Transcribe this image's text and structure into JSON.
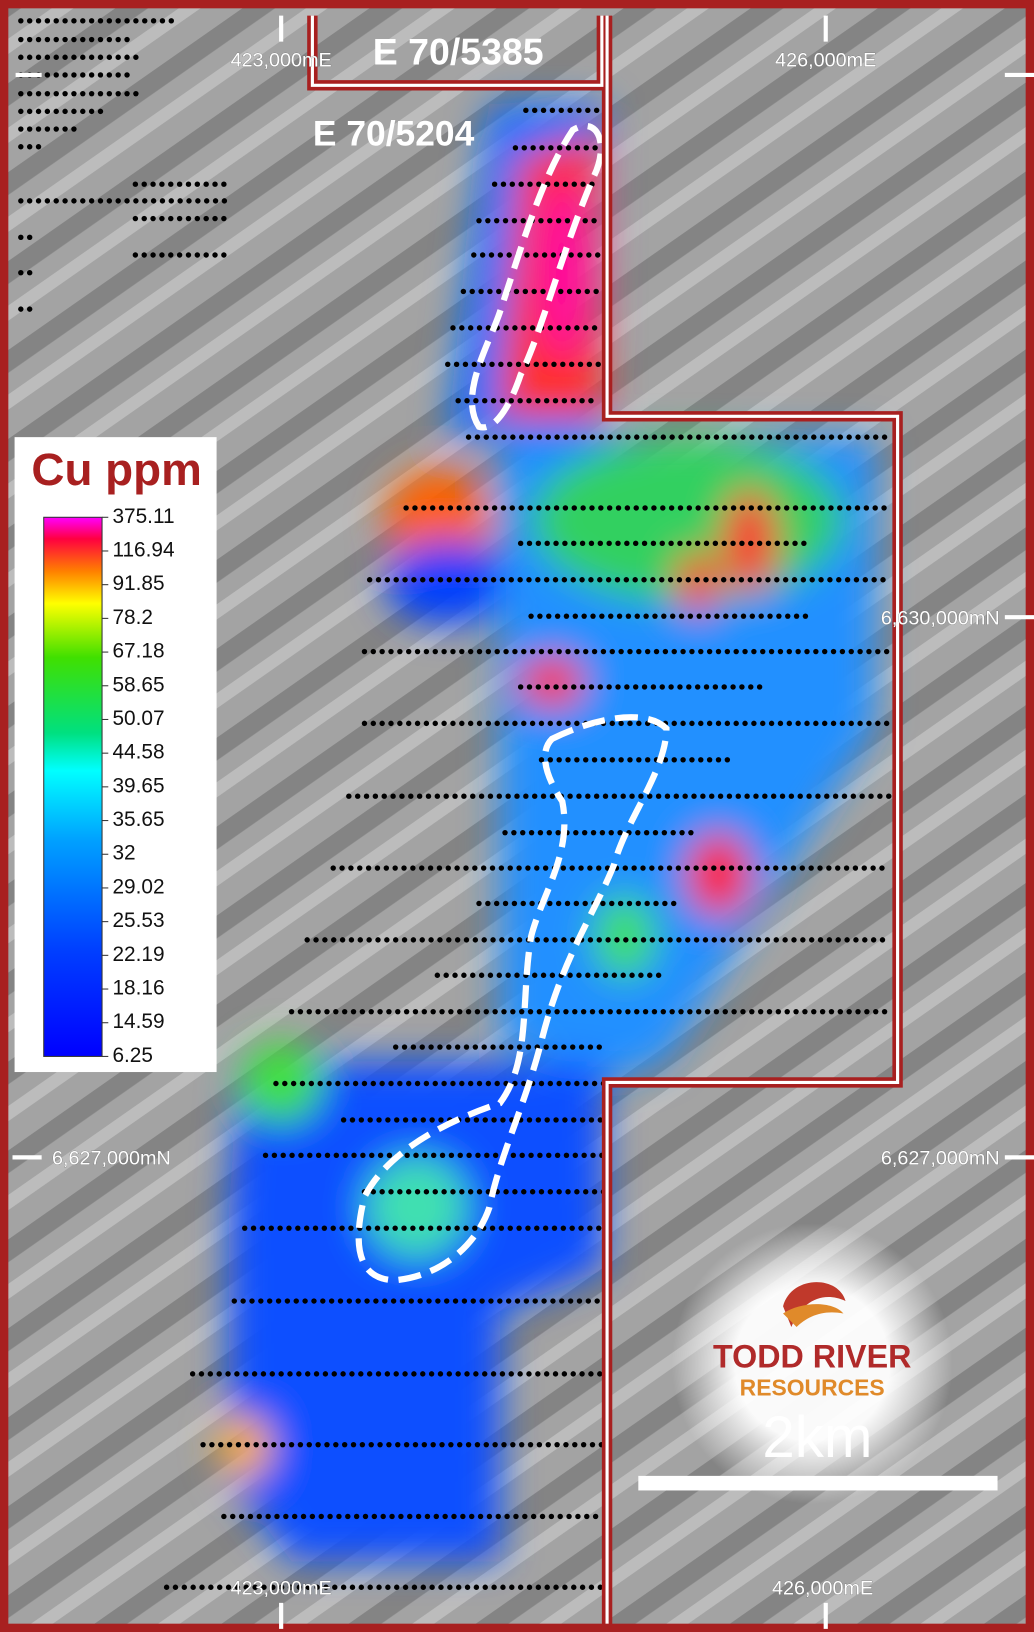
{
  "map": {
    "tenements": [
      "E 70/5385",
      "E 70/5204"
    ],
    "grid_labels": {
      "easting_left": "423,000mE",
      "easting_right": "426,000mE",
      "northing_upper": "6,630,000mN",
      "northing_lower": "6,627,000mN"
    },
    "legend": {
      "title": "Cu ppm",
      "labels": [
        "375.11",
        "116.94",
        "91.85",
        "78.2",
        "67.18",
        "58.65",
        "50.07",
        "44.58",
        "39.65",
        "35.65",
        "32",
        "29.02",
        "25.53",
        "22.19",
        "18.16",
        "14.59",
        "6.25"
      ]
    },
    "logo": {
      "line1": "TODD RIVER",
      "line2": "RESOURCES"
    },
    "scale_bar": "2km"
  }
}
